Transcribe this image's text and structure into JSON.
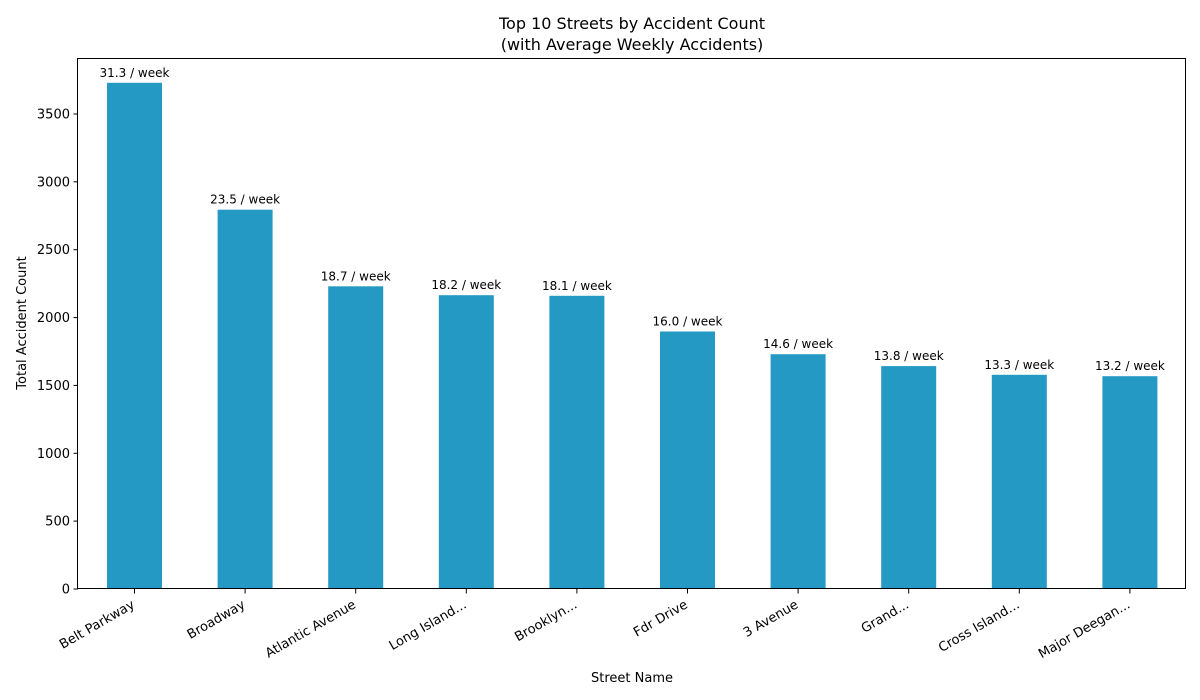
{
  "chart_data": {
    "type": "bar",
    "title": "Top 10 Streets by Accident Count\n(with Average Weekly Accidents)",
    "xlabel": "Street Name",
    "ylabel": "Total Accident Count",
    "categories": [
      "Belt Parkway",
      "Broadway",
      "Atlantic Avenue",
      "Long Island...",
      "Brooklyn...",
      "Fdr Drive",
      "3 Avenue",
      "Grand...",
      "Cross Island...",
      "Major Deegan..."
    ],
    "values": [
      3730,
      2795,
      2230,
      2165,
      2160,
      1897,
      1730,
      1642,
      1578,
      1568
    ],
    "data_labels": [
      "31.3 / week",
      "23.5 / week",
      "18.7 / week",
      "18.2 / week",
      "18.1 / week",
      "16.0 / week",
      "14.6 / week",
      "13.8 / week",
      "13.3 / week",
      "13.2 / week"
    ],
    "ylim": [
      0,
      3905
    ],
    "yticks": [
      0,
      500,
      1000,
      1500,
      2000,
      2500,
      3000,
      3500
    ],
    "bar_color": "#2399c4",
    "grid": false,
    "legend": "none"
  }
}
